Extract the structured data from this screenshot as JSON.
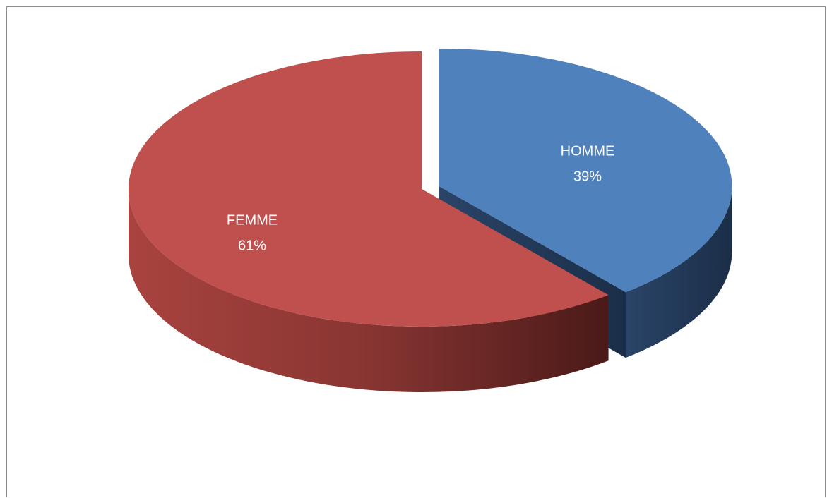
{
  "chart_data": {
    "type": "pie3d",
    "categories": [
      "HOMME",
      "FEMME"
    ],
    "values": [
      39,
      61
    ],
    "value_labels": [
      "39%",
      "61%"
    ],
    "colors": [
      "#4f81bd",
      "#c0504d"
    ]
  }
}
